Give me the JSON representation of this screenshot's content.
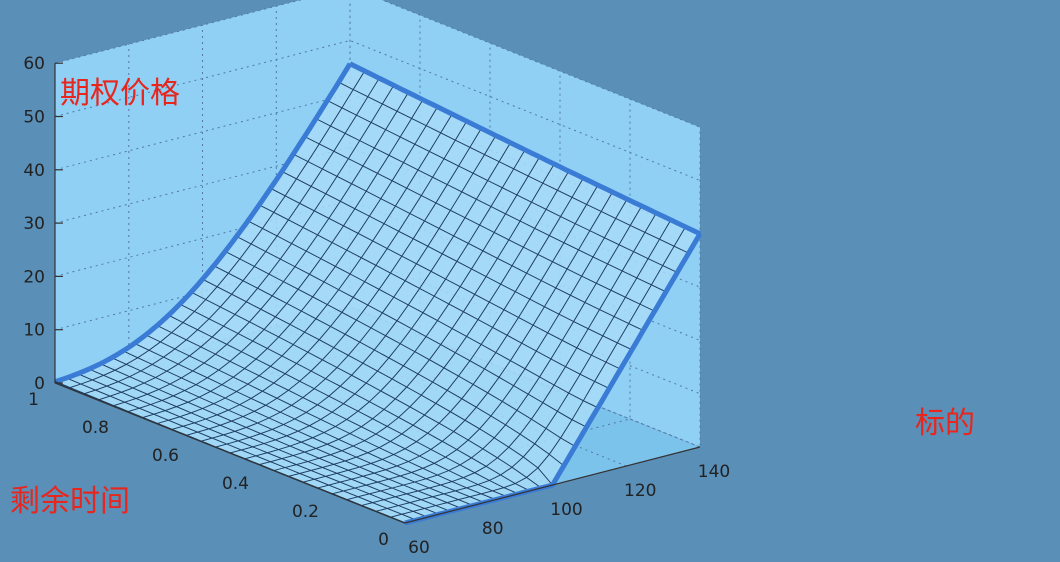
{
  "chart_data": {
    "type": "surface",
    "title": "",
    "annotations": {
      "z_label": "期权价格",
      "time_label": "剩余时间",
      "underlying_label": "标的"
    },
    "axes": {
      "z": {
        "ticks": [
          "0",
          "10",
          "20",
          "30",
          "40",
          "50",
          "60"
        ],
        "range": [
          0,
          60
        ]
      },
      "time": {
        "ticks": [
          "0",
          "0.2",
          "0.4",
          "0.6",
          "0.8",
          "1"
        ],
        "range": [
          0,
          1
        ]
      },
      "underlying": {
        "ticks": [
          "60",
          "80",
          "100",
          "120",
          "140"
        ],
        "range": [
          60,
          140
        ]
      }
    },
    "grid": true,
    "strike": 100,
    "underlying_values": [
      60,
      70,
      80,
      90,
      100,
      110,
      120,
      130,
      140
    ],
    "time_values": [
      0,
      0.2,
      0.4,
      0.6,
      0.8,
      1.0
    ],
    "price_at_time_1": [
      5,
      9,
      15,
      23,
      32,
      40,
      48,
      55,
      61
    ],
    "price_at_time_0": [
      0,
      0,
      0,
      0,
      0,
      10,
      20,
      30,
      40
    ]
  },
  "colors": {
    "background": "#5a8fb8",
    "pane": "#8fd0f4",
    "pane_dark": "#7cc3ec",
    "surface_edge": "#3a7bd5",
    "mesh": "#1f3f63",
    "annotation": "#e8261e"
  }
}
